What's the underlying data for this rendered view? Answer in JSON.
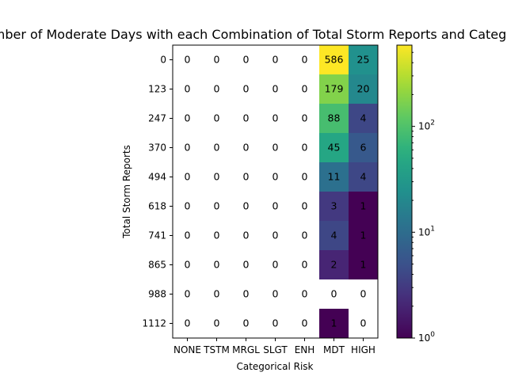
{
  "chart_data": {
    "type": "heatmap",
    "title": "Number of Moderate Days with each Combination of Total Storm Reports and Categorical Risk",
    "xlabel": "Categorical Risk",
    "ylabel": "Total Storm Reports",
    "x_categories": [
      "NONE",
      "TSTM",
      "MRGL",
      "SLGT",
      "ENH",
      "MDT",
      "HIGH"
    ],
    "y_categories": [
      "0",
      "123",
      "247",
      "370",
      "494",
      "618",
      "741",
      "865",
      "988",
      "1112"
    ],
    "values": [
      [
        0,
        0,
        0,
        0,
        0,
        586,
        25
      ],
      [
        0,
        0,
        0,
        0,
        0,
        179,
        20
      ],
      [
        0,
        0,
        0,
        0,
        0,
        88,
        4
      ],
      [
        0,
        0,
        0,
        0,
        0,
        45,
        6
      ],
      [
        0,
        0,
        0,
        0,
        0,
        11,
        4
      ],
      [
        0,
        0,
        0,
        0,
        0,
        3,
        1
      ],
      [
        0,
        0,
        0,
        0,
        0,
        4,
        1
      ],
      [
        0,
        0,
        0,
        0,
        0,
        2,
        1
      ],
      [
        0,
        0,
        0,
        0,
        0,
        0,
        0
      ],
      [
        0,
        0,
        0,
        0,
        0,
        1,
        0
      ]
    ],
    "colormap": "viridis",
    "color_scale": "log",
    "color_range": [
      1,
      586
    ],
    "colorbar_ticks": [
      {
        "value": 1,
        "base": "10",
        "exp": "0"
      },
      {
        "value": 10,
        "base": "10",
        "exp": "1"
      },
      {
        "value": 100,
        "base": "10",
        "exp": "2"
      }
    ],
    "zero_cells_color": "#ffffff"
  }
}
